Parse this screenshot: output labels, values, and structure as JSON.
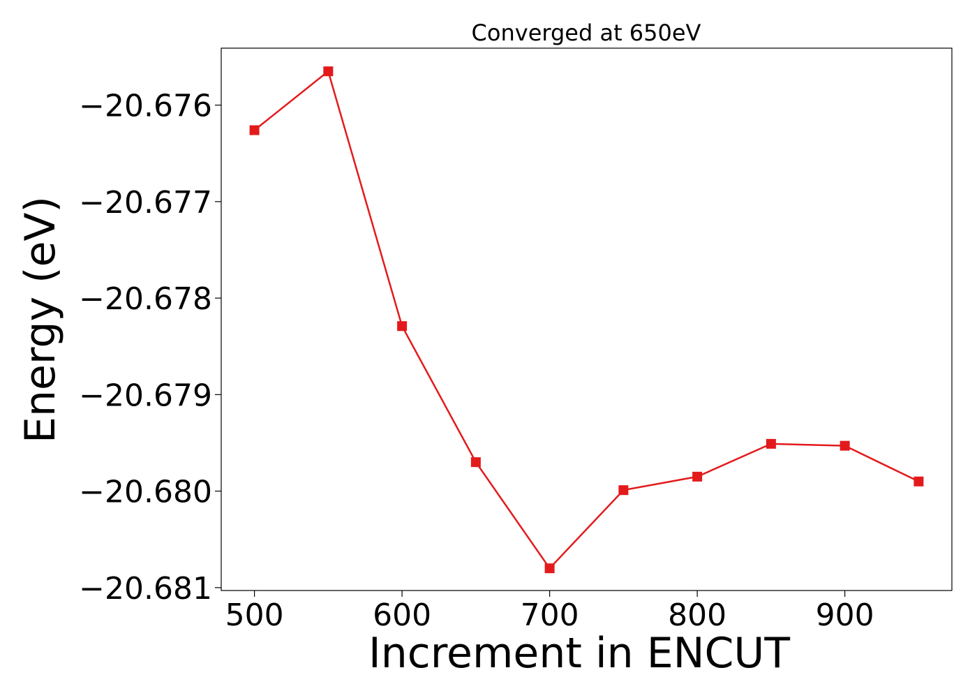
{
  "chart_data": {
    "type": "line",
    "title": "Converged at 650eV",
    "xlabel": "Increment in ENCUT",
    "ylabel": "Energy (eV)",
    "x": [
      500,
      550,
      600,
      650,
      700,
      750,
      800,
      850,
      900,
      950
    ],
    "series": [
      {
        "values": [
          -20.67626,
          -20.67565,
          -20.67829,
          -20.6797,
          -20.6808,
          -20.67999,
          -20.67985,
          -20.67951,
          -20.67953,
          -20.6799
        ],
        "color": "#e31a1c",
        "marker": "square"
      }
    ],
    "xlim": [
      477.5,
      972.5
    ],
    "ylim": [
      -20.68103,
      -20.67541
    ],
    "xticks": [
      500,
      600,
      700,
      800,
      900
    ],
    "xtick_labels": [
      "500",
      "600",
      "700",
      "800",
      "900"
    ],
    "yticks": [
      -20.676,
      -20.677,
      -20.678,
      -20.679,
      -20.68,
      -20.681
    ],
    "ytick_labels": [
      "−20.676",
      "−20.677",
      "−20.678",
      "−20.679",
      "−20.680",
      "−20.681"
    ],
    "grid": false,
    "legend": "none"
  }
}
